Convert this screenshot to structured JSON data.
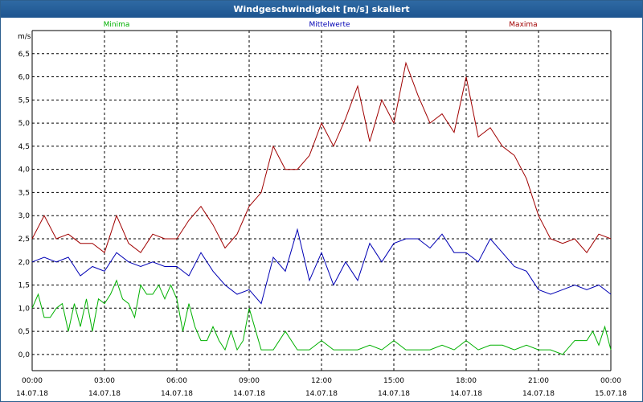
{
  "window": {
    "title": "Windgeschwindigkeit [m/s] skaliert"
  },
  "colors": {
    "minima": "#00b000",
    "mittelwerte": "#0000b4",
    "maxima": "#a00000",
    "grid": "#000000",
    "titlebar": "#1f5d99"
  },
  "chart_data": {
    "type": "line",
    "title": "Windgeschwindigkeit [m/s] skaliert",
    "ylabel": "m/s",
    "xlabel": "",
    "ylim": [
      -0.35,
      7.0
    ],
    "yticks": [
      "0,0",
      "0,5",
      "1,0",
      "1,5",
      "2,0",
      "2,5",
      "3,0",
      "3,5",
      "4,0",
      "4,5",
      "5,0",
      "5,5",
      "6,0",
      "6,5"
    ],
    "xticks": [
      {
        "time": "00:00",
        "date": "14.07.18"
      },
      {
        "time": "03:00",
        "date": "14.07.18"
      },
      {
        "time": "06:00",
        "date": "14.07.18"
      },
      {
        "time": "09:00",
        "date": "14.07.18"
      },
      {
        "time": "12:00",
        "date": "14.07.18"
      },
      {
        "time": "15:00",
        "date": "14.07.18"
      },
      {
        "time": "18:00",
        "date": "14.07.18"
      },
      {
        "time": "21:00",
        "date": "14.07.18"
      },
      {
        "time": "00:00",
        "date": "15.07.18"
      }
    ],
    "x_unit": "hours since 14.07.18 00:00",
    "grid": true,
    "legend_position": "top",
    "series": [
      {
        "name": "Minima",
        "color": "#00b000",
        "x": [
          0,
          0.25,
          0.5,
          0.75,
          1,
          1.25,
          1.5,
          1.75,
          2,
          2.25,
          2.5,
          2.75,
          3,
          3.25,
          3.5,
          3.75,
          4,
          4.25,
          4.5,
          4.75,
          5,
          5.25,
          5.5,
          5.75,
          6,
          6.25,
          6.5,
          6.75,
          7,
          7.25,
          7.5,
          7.75,
          8,
          8.25,
          8.5,
          8.75,
          9,
          9.5,
          10,
          10.5,
          11,
          11.5,
          12,
          12.5,
          13,
          13.5,
          14,
          14.5,
          15,
          15.5,
          16,
          16.5,
          17,
          17.5,
          18,
          18.5,
          19,
          19.5,
          20,
          20.5,
          21,
          21.5,
          22,
          22.5,
          23,
          23.25,
          23.5,
          23.75,
          24
        ],
        "values": [
          1.0,
          1.3,
          0.8,
          0.8,
          1.0,
          1.1,
          0.5,
          1.1,
          0.6,
          1.2,
          0.5,
          1.2,
          1.1,
          1.3,
          1.6,
          1.2,
          1.1,
          0.8,
          1.5,
          1.3,
          1.3,
          1.5,
          1.2,
          1.5,
          1.2,
          0.5,
          1.1,
          0.6,
          0.3,
          0.3,
          0.6,
          0.3,
          0.1,
          0.5,
          0.1,
          0.3,
          1.0,
          0.1,
          0.1,
          0.5,
          0.1,
          0.1,
          0.3,
          0.1,
          0.1,
          0.1,
          0.2,
          0.1,
          0.3,
          0.1,
          0.1,
          0.1,
          0.2,
          0.1,
          0.3,
          0.1,
          0.2,
          0.2,
          0.1,
          0.2,
          0.1,
          0.1,
          0.0,
          0.3,
          0.3,
          0.5,
          0.2,
          0.6,
          0.1
        ]
      },
      {
        "name": "Mittelwerte",
        "color": "#0000b4",
        "x": [
          0,
          0.5,
          1,
          1.5,
          2,
          2.5,
          3,
          3.5,
          4,
          4.5,
          5,
          5.5,
          6,
          6.5,
          7,
          7.5,
          8,
          8.5,
          9,
          9.5,
          10,
          10.5,
          11,
          11.5,
          12,
          12.5,
          13,
          13.5,
          14,
          14.5,
          15,
          15.5,
          16,
          16.5,
          17,
          17.5,
          18,
          18.5,
          19,
          19.5,
          20,
          20.5,
          21,
          21.5,
          22,
          22.5,
          23,
          23.5,
          24
        ],
        "values": [
          2.0,
          2.1,
          2.0,
          2.1,
          1.7,
          1.9,
          1.8,
          2.2,
          2.0,
          1.9,
          2.0,
          1.9,
          1.9,
          1.7,
          2.2,
          1.8,
          1.5,
          1.3,
          1.4,
          1.1,
          2.1,
          1.8,
          2.7,
          1.6,
          2.2,
          1.5,
          2.0,
          1.6,
          2.4,
          2.0,
          2.4,
          2.5,
          2.5,
          2.3,
          2.6,
          2.2,
          2.2,
          2.0,
          2.5,
          2.2,
          1.9,
          1.8,
          1.4,
          1.3,
          1.4,
          1.5,
          1.4,
          1.5,
          1.3
        ]
      },
      {
        "name": "Maxima",
        "color": "#a00000",
        "x": [
          0,
          0.5,
          1,
          1.5,
          2,
          2.5,
          3,
          3.5,
          4,
          4.5,
          5,
          5.5,
          6,
          6.5,
          7,
          7.5,
          8,
          8.5,
          9,
          9.5,
          10,
          10.5,
          11,
          11.5,
          12,
          12.5,
          13,
          13.5,
          14,
          14.5,
          15,
          15.5,
          16,
          16.5,
          17,
          17.5,
          18,
          18.5,
          19,
          19.5,
          20,
          20.5,
          21,
          21.5,
          22,
          22.5,
          23,
          23.5,
          24
        ],
        "values": [
          2.5,
          3.0,
          2.5,
          2.6,
          2.4,
          2.4,
          2.2,
          3.0,
          2.4,
          2.2,
          2.6,
          2.5,
          2.5,
          2.9,
          3.2,
          2.8,
          2.3,
          2.6,
          3.2,
          3.5,
          4.5,
          4.0,
          4.0,
          4.3,
          5.0,
          4.5,
          5.1,
          5.8,
          4.6,
          5.5,
          5.0,
          6.3,
          5.6,
          5.0,
          5.2,
          4.8,
          6.0,
          4.7,
          4.9,
          4.5,
          4.3,
          3.8,
          3.0,
          2.5,
          2.4,
          2.5,
          2.2,
          2.6,
          2.5
        ]
      }
    ]
  }
}
